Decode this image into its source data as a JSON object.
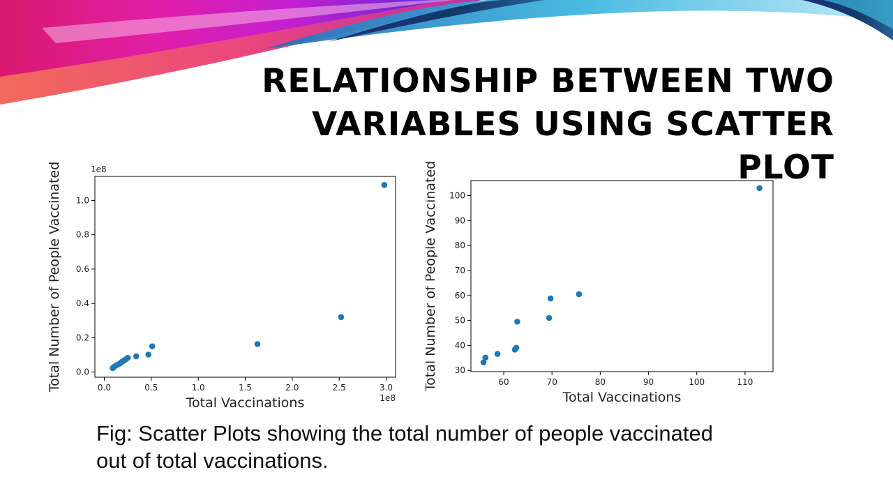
{
  "slide": {
    "title_line1": "RELATIONSHIP BETWEEN TWO",
    "title_line2": "VARIABLES USING SCATTER PLOT",
    "caption_line1": "Fig: Scatter Plots showing the total number of people vaccinated",
    "caption_line2": "out of total vaccinations."
  },
  "colors": {
    "marker": "#1f77b4",
    "banner_magenta": "#e41ca5",
    "banner_cyan": "#4fc6e6",
    "banner_navy": "#123a6b"
  },
  "chart_data": [
    {
      "type": "scatter",
      "title": "",
      "xlabel": "Total Vaccinations",
      "ylabel": "Total Number of People Vaccinated",
      "x_offset_text": "1e8",
      "y_offset_text": "1e8",
      "xlim": [
        -0.1,
        3.1
      ],
      "ylim": [
        -0.03,
        1.14
      ],
      "xticks": [
        0.0,
        0.5,
        1.0,
        1.5,
        2.0,
        2.5,
        3.0
      ],
      "xtick_labels": [
        "0.0",
        "0.5",
        "1.0",
        "1.5",
        "2.0",
        "2.5",
        "3.0"
      ],
      "yticks": [
        0.0,
        0.2,
        0.4,
        0.6,
        0.8,
        1.0
      ],
      "ytick_labels": [
        "0.0",
        "0.2",
        "0.4",
        "0.6",
        "0.8",
        "1.0"
      ],
      "grid": false,
      "legend": "none",
      "x": [
        0.09,
        0.1,
        0.11,
        0.13,
        0.15,
        0.17,
        0.19,
        0.21,
        0.23,
        0.25,
        0.34,
        0.47,
        0.51,
        1.63,
        2.52,
        2.98
      ],
      "y": [
        0.023,
        0.028,
        0.033,
        0.04,
        0.045,
        0.052,
        0.06,
        0.067,
        0.075,
        0.083,
        0.092,
        0.102,
        0.15,
        0.163,
        0.32,
        1.09
      ]
    },
    {
      "type": "scatter",
      "title": "",
      "xlabel": "Total Vaccinations",
      "ylabel": "Total Number of People Vaccinated",
      "xlim": [
        53.2,
        115.8
      ],
      "ylim": [
        29.5,
        106.0
      ],
      "xticks": [
        60,
        70,
        80,
        90,
        100,
        110
      ],
      "xtick_labels": [
        "60",
        "70",
        "80",
        "90",
        "100",
        "110"
      ],
      "yticks": [
        30,
        40,
        50,
        60,
        70,
        80,
        90,
        100
      ],
      "ytick_labels": [
        "30",
        "40",
        "50",
        "60",
        "70",
        "80",
        "90",
        "100"
      ],
      "grid": false,
      "legend": "none",
      "x": [
        55.8,
        56.2,
        58.7,
        62.3,
        62.6,
        62.8,
        69.4,
        69.7,
        75.6,
        113.0
      ],
      "y": [
        33.2,
        35.1,
        36.6,
        38.3,
        39.0,
        49.5,
        51.0,
        58.8,
        60.5,
        103.0
      ]
    }
  ]
}
